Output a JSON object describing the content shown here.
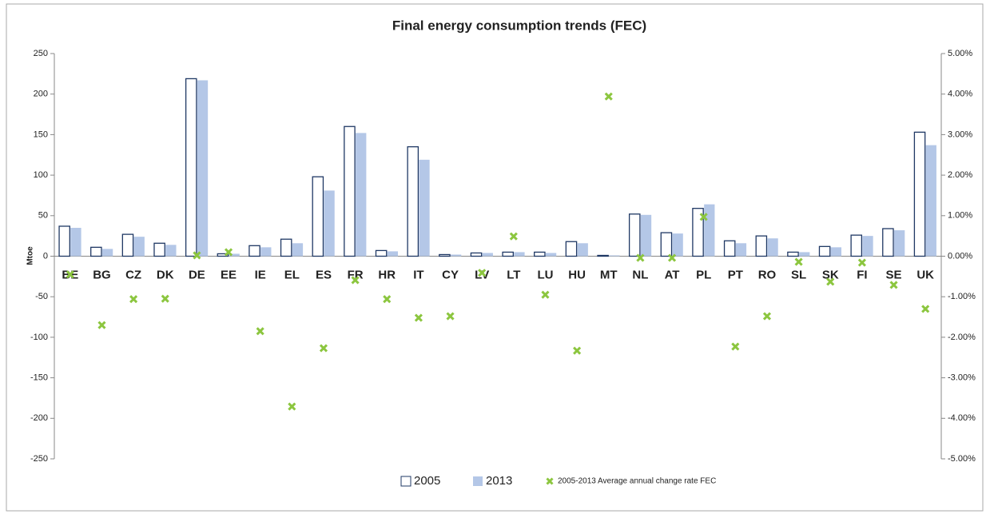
{
  "chart_data": {
    "type": "bar",
    "title": "Final energy consumption trends (FEC)",
    "y_label": "Mtoe",
    "categories": [
      "BE",
      "BG",
      "CZ",
      "DK",
      "DE",
      "EE",
      "IE",
      "EL",
      "ES",
      "FR",
      "HR",
      "IT",
      "CY",
      "LV",
      "LT",
      "LU",
      "HU",
      "MT",
      "NL",
      "AT",
      "PL",
      "PT",
      "RO",
      "SL",
      "SK",
      "FI",
      "SE",
      "UK"
    ],
    "series": [
      {
        "name": "2005",
        "type": "bar",
        "color": "#ffffff",
        "stroke": "#1f3864",
        "values": [
          37,
          11,
          27,
          16,
          219,
          3,
          13,
          21,
          98,
          160,
          7,
          135,
          2,
          4,
          5,
          5,
          18,
          1,
          52,
          29,
          59,
          19,
          25,
          5,
          12,
          26,
          34,
          153
        ]
      },
      {
        "name": "2013",
        "type": "bar",
        "color": "#b4c7e7",
        "values": [
          35,
          9,
          24,
          14,
          217,
          3,
          11,
          16,
          81,
          152,
          6,
          119,
          2,
          4,
          5,
          4,
          16,
          1,
          51,
          28,
          64,
          16,
          22,
          5,
          11,
          25,
          32,
          137
        ]
      },
      {
        "name": "2005-2013 Average annual change rate FEC",
        "type": "scatter",
        "axis": "y2",
        "color": "#8cc63f",
        "values": [
          -0.45,
          -1.7,
          -1.06,
          -1.05,
          0.02,
          0.1,
          -1.85,
          -3.71,
          -2.27,
          -0.59,
          -1.06,
          -1.52,
          -1.48,
          -0.41,
          0.49,
          -0.95,
          -2.33,
          3.94,
          -0.04,
          -0.04,
          0.97,
          -2.23,
          -1.48,
          -0.14,
          -0.63,
          -0.16,
          -0.71,
          -1.3
        ]
      }
    ],
    "ylim": [
      -250,
      250
    ],
    "yticks": [
      -250,
      -200,
      -150,
      -100,
      -50,
      0,
      50,
      100,
      150,
      200,
      250
    ],
    "y2lim": [
      -5,
      5
    ],
    "y2ticks": [
      {
        "value": -5,
        "label": "-5.00%"
      },
      {
        "value": -4,
        "label": "-4.00%"
      },
      {
        "value": -3,
        "label": "-3.00%"
      },
      {
        "value": -2,
        "label": "-2.00%"
      },
      {
        "value": -1,
        "label": "-1.00%"
      },
      {
        "value": 0,
        "label": "0.00%"
      },
      {
        "value": 1,
        "label": "1.00%"
      },
      {
        "value": 2,
        "label": "2.00%"
      },
      {
        "value": 3,
        "label": "3.00%"
      },
      {
        "value": 4,
        "label": "4.00%"
      },
      {
        "value": 5,
        "label": "5.00%"
      }
    ],
    "grid": false,
    "legend": "bottom"
  }
}
